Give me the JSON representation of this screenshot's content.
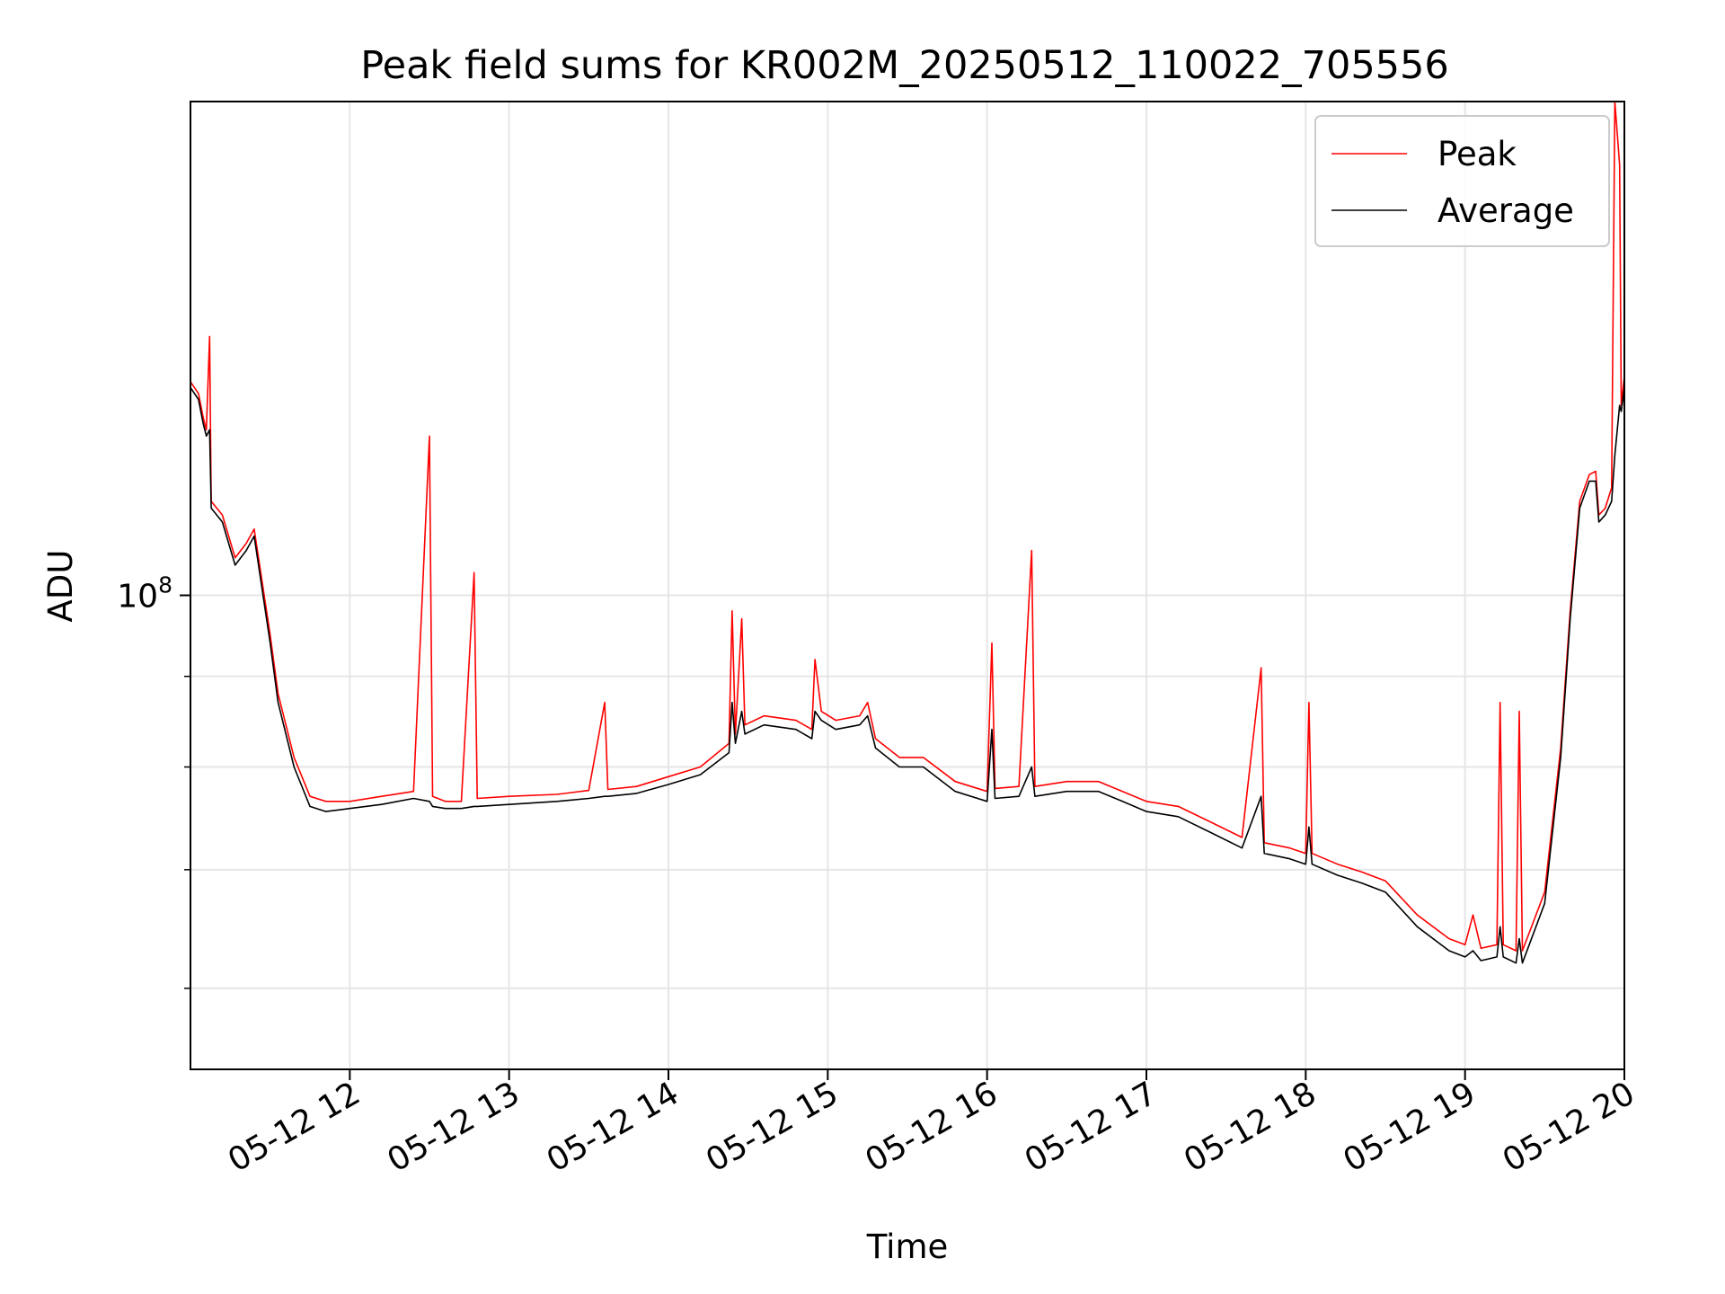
{
  "chart_data": {
    "type": "line",
    "title": "Peak field sums for KR002M_20250512_110022_705556",
    "xlabel": "Time",
    "ylabel": "ADU",
    "x_tick_labels": [
      "05-12 12",
      "05-12 13",
      "05-12 14",
      "05-12 15",
      "05-12 16",
      "05-12 17",
      "05-12 18",
      "05-12 19",
      "05-12 20"
    ],
    "x_tick_values": [
      12,
      13,
      14,
      15,
      16,
      17,
      18,
      19,
      20
    ],
    "x_unit": "hours on 2025-05-12",
    "xlim": [
      11.0,
      20.0
    ],
    "yscale": "log",
    "ylim": [
      54000000,
      190000000
    ],
    "y_major_ticks": [
      {
        "value": 100000000,
        "base": "10",
        "exp": "8"
      }
    ],
    "y_minor_ticks": [
      60000000,
      70000000,
      80000000,
      90000000
    ],
    "grid": true,
    "legend_position": "upper right",
    "series": [
      {
        "name": "Peak",
        "color": "#ff0000",
        "points": [
          [
            11.0,
            132000000
          ],
          [
            11.05,
            130000000
          ],
          [
            11.08,
            126000000
          ],
          [
            11.1,
            124000000
          ],
          [
            11.12,
            140000000
          ],
          [
            11.13,
            113000000
          ],
          [
            11.2,
            111000000
          ],
          [
            11.28,
            105000000
          ],
          [
            11.35,
            107000000
          ],
          [
            11.4,
            109000000
          ],
          [
            11.5,
            95000000
          ],
          [
            11.55,
            88000000
          ],
          [
            11.65,
            81000000
          ],
          [
            11.75,
            77000000
          ],
          [
            11.85,
            76500000
          ],
          [
            12.0,
            76500000
          ],
          [
            12.2,
            77000000
          ],
          [
            12.4,
            77500000
          ],
          [
            12.5,
            123000000
          ],
          [
            12.52,
            77000000
          ],
          [
            12.6,
            76500000
          ],
          [
            12.7,
            76500000
          ],
          [
            12.78,
            103000000
          ],
          [
            12.8,
            76800000
          ],
          [
            13.0,
            77000000
          ],
          [
            13.3,
            77200000
          ],
          [
            13.5,
            77600000
          ],
          [
            13.6,
            87000000
          ],
          [
            13.62,
            77700000
          ],
          [
            13.8,
            78000000
          ],
          [
            14.0,
            79000000
          ],
          [
            14.2,
            80000000
          ],
          [
            14.38,
            82500000
          ],
          [
            14.4,
            98000000
          ],
          [
            14.42,
            83500000
          ],
          [
            14.46,
            97000000
          ],
          [
            14.48,
            84500000
          ],
          [
            14.6,
            85500000
          ],
          [
            14.8,
            85000000
          ],
          [
            14.9,
            84000000
          ],
          [
            14.92,
            92000000
          ],
          [
            14.96,
            86000000
          ],
          [
            15.05,
            85000000
          ],
          [
            15.2,
            85500000
          ],
          [
            15.25,
            87000000
          ],
          [
            15.3,
            83000000
          ],
          [
            15.45,
            81000000
          ],
          [
            15.6,
            81000000
          ],
          [
            15.8,
            78500000
          ],
          [
            16.0,
            77500000
          ],
          [
            16.03,
            94000000
          ],
          [
            16.05,
            77800000
          ],
          [
            16.2,
            78000000
          ],
          [
            16.28,
            106000000
          ],
          [
            16.3,
            78000000
          ],
          [
            16.5,
            78500000
          ],
          [
            16.7,
            78500000
          ],
          [
            16.85,
            77500000
          ],
          [
            17.0,
            76500000
          ],
          [
            17.2,
            76000000
          ],
          [
            17.4,
            74500000
          ],
          [
            17.6,
            73000000
          ],
          [
            17.72,
            91000000
          ],
          [
            17.74,
            72500000
          ],
          [
            17.9,
            72000000
          ],
          [
            18.0,
            71500000
          ],
          [
            18.02,
            87000000
          ],
          [
            18.04,
            71500000
          ],
          [
            18.2,
            70500000
          ],
          [
            18.35,
            69800000
          ],
          [
            18.5,
            69000000
          ],
          [
            18.7,
            66000000
          ],
          [
            18.9,
            64000000
          ],
          [
            19.0,
            63500000
          ],
          [
            19.05,
            66000000
          ],
          [
            19.1,
            63200000
          ],
          [
            19.2,
            63500000
          ],
          [
            19.22,
            87000000
          ],
          [
            19.24,
            63500000
          ],
          [
            19.32,
            63000000
          ],
          [
            19.34,
            86000000
          ],
          [
            19.36,
            63000000
          ],
          [
            19.5,
            68000000
          ],
          [
            19.6,
            82000000
          ],
          [
            19.66,
            98000000
          ],
          [
            19.72,
            113000000
          ],
          [
            19.78,
            117000000
          ],
          [
            19.82,
            117500000
          ],
          [
            19.84,
            111000000
          ],
          [
            19.88,
            112000000
          ],
          [
            19.92,
            115000000
          ],
          [
            19.94,
            190000000
          ],
          [
            19.97,
            175000000
          ],
          [
            19.98,
            128000000
          ],
          [
            20.0,
            133000000
          ]
        ]
      },
      {
        "name": "Average",
        "color": "#000000",
        "points": [
          [
            11.0,
            131000000
          ],
          [
            11.05,
            129000000
          ],
          [
            11.08,
            125000000
          ],
          [
            11.1,
            123000000
          ],
          [
            11.12,
            124000000
          ],
          [
            11.13,
            112000000
          ],
          [
            11.2,
            110000000
          ],
          [
            11.28,
            104000000
          ],
          [
            11.35,
            106000000
          ],
          [
            11.4,
            108000000
          ],
          [
            11.5,
            94000000
          ],
          [
            11.55,
            87000000
          ],
          [
            11.65,
            80000000
          ],
          [
            11.75,
            76000000
          ],
          [
            11.85,
            75500000
          ],
          [
            12.0,
            75800000
          ],
          [
            12.2,
            76200000
          ],
          [
            12.4,
            76800000
          ],
          [
            12.5,
            76500000
          ],
          [
            12.52,
            76000000
          ],
          [
            12.6,
            75800000
          ],
          [
            12.7,
            75800000
          ],
          [
            12.78,
            76000000
          ],
          [
            12.8,
            76000000
          ],
          [
            13.0,
            76200000
          ],
          [
            13.3,
            76500000
          ],
          [
            13.5,
            76800000
          ],
          [
            13.6,
            77000000
          ],
          [
            13.62,
            77000000
          ],
          [
            13.8,
            77300000
          ],
          [
            14.0,
            78200000
          ],
          [
            14.2,
            79200000
          ],
          [
            14.38,
            81500000
          ],
          [
            14.4,
            87000000
          ],
          [
            14.42,
            82500000
          ],
          [
            14.46,
            86000000
          ],
          [
            14.48,
            83500000
          ],
          [
            14.6,
            84500000
          ],
          [
            14.8,
            84000000
          ],
          [
            14.9,
            83000000
          ],
          [
            14.92,
            86000000
          ],
          [
            14.96,
            85000000
          ],
          [
            15.05,
            84000000
          ],
          [
            15.2,
            84500000
          ],
          [
            15.25,
            85500000
          ],
          [
            15.3,
            82000000
          ],
          [
            15.45,
            80000000
          ],
          [
            15.6,
            80000000
          ],
          [
            15.8,
            77500000
          ],
          [
            16.0,
            76500000
          ],
          [
            16.03,
            84000000
          ],
          [
            16.05,
            76800000
          ],
          [
            16.2,
            77000000
          ],
          [
            16.28,
            80000000
          ],
          [
            16.3,
            77000000
          ],
          [
            16.5,
            77500000
          ],
          [
            16.7,
            77500000
          ],
          [
            16.85,
            76500000
          ],
          [
            17.0,
            75500000
          ],
          [
            17.2,
            75000000
          ],
          [
            17.4,
            73500000
          ],
          [
            17.6,
            72000000
          ],
          [
            17.72,
            77000000
          ],
          [
            17.74,
            71500000
          ],
          [
            17.9,
            71000000
          ],
          [
            18.0,
            70500000
          ],
          [
            18.02,
            74000000
          ],
          [
            18.04,
            70500000
          ],
          [
            18.2,
            69500000
          ],
          [
            18.35,
            68800000
          ],
          [
            18.5,
            68000000
          ],
          [
            18.7,
            65000000
          ],
          [
            18.9,
            63000000
          ],
          [
            19.0,
            62500000
          ],
          [
            19.05,
            63000000
          ],
          [
            19.1,
            62200000
          ],
          [
            19.2,
            62500000
          ],
          [
            19.22,
            65000000
          ],
          [
            19.24,
            62500000
          ],
          [
            19.32,
            62000000
          ],
          [
            19.34,
            64000000
          ],
          [
            19.36,
            62000000
          ],
          [
            19.5,
            67000000
          ],
          [
            19.6,
            81000000
          ],
          [
            19.66,
            97000000
          ],
          [
            19.72,
            112000000
          ],
          [
            19.78,
            116000000
          ],
          [
            19.82,
            116000000
          ],
          [
            19.84,
            110000000
          ],
          [
            19.88,
            111000000
          ],
          [
            19.92,
            113000000
          ],
          [
            19.94,
            120000000
          ],
          [
            19.97,
            128000000
          ],
          [
            19.98,
            127000000
          ],
          [
            20.0,
            131000000
          ]
        ]
      }
    ]
  }
}
